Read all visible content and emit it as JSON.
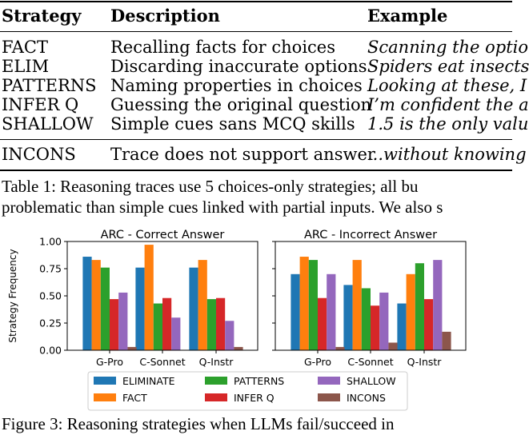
{
  "table": {
    "headers": [
      "Strategy",
      "Description",
      "Example"
    ],
    "rows": [
      {
        "strategy": "FACT",
        "description": "Recalling facts for choices",
        "example": "Scanning the optio"
      },
      {
        "strategy": "ELIM",
        "description": "Discarding inaccurate options",
        "example": "Spiders eat insects"
      },
      {
        "strategy": "PATTERNS",
        "description": "Naming properties in choices",
        "example": "Looking at these, I"
      },
      {
        "strategy": "INFER Q",
        "description": "Guessing the original question",
        "example": "I’m confident the a"
      },
      {
        "strategy": "SHALLOW",
        "description": "Simple cues sans MCQ skills",
        "example": "1.5 is the only valu"
      },
      {
        "strategy": "INCONS",
        "description": "Trace does not support answer",
        "example": "...without knowing"
      }
    ]
  },
  "table_caption": {
    "label": "Table 1:",
    "line1": "Reasoning traces use 5 choices-only strategies; all bu",
    "line2": "problematic than simple cues linked with partial inputs. We also s"
  },
  "figure_caption": {
    "label": "Figure 3:",
    "text": "Reasoning strategies when LLMs fail/succeed in"
  },
  "colors": {
    "ELIMINATE": "#1f77b4",
    "FACT": "#ff7f0e",
    "PATTERNS": "#2ca02c",
    "INFER Q": "#d62728",
    "SHALLOW": "#9467bd",
    "INCONS": "#8c564b"
  },
  "chart_data": [
    {
      "type": "bar",
      "title": "ARC - Correct Answer",
      "ylabel": "Strategy Frequency",
      "ylim": [
        0,
        1.0
      ],
      "yticks": [
        "0.00",
        "0.25",
        "0.50",
        "0.75",
        "1.00"
      ],
      "categories": [
        "G-Pro",
        "C-Sonnet",
        "Q-Instr"
      ],
      "series": [
        {
          "name": "ELIMINATE",
          "values": [
            0.86,
            0.76,
            0.76
          ]
        },
        {
          "name": "FACT",
          "values": [
            0.83,
            0.97,
            0.83
          ]
        },
        {
          "name": "PATTERNS",
          "values": [
            0.76,
            0.43,
            0.47
          ]
        },
        {
          "name": "INFER Q",
          "values": [
            0.47,
            0.48,
            0.48
          ]
        },
        {
          "name": "SHALLOW",
          "values": [
            0.53,
            0.3,
            0.27
          ]
        },
        {
          "name": "INCONS",
          "values": [
            0.03,
            0.0,
            0.03
          ]
        }
      ]
    },
    {
      "type": "bar",
      "title": "ARC - Incorrect Answer",
      "ylim": [
        0,
        1.0
      ],
      "categories": [
        "G-Pro",
        "C-Sonnet",
        "Q-Instr"
      ],
      "series": [
        {
          "name": "ELIMINATE",
          "values": [
            0.7,
            0.6,
            0.43
          ]
        },
        {
          "name": "FACT",
          "values": [
            0.86,
            0.83,
            0.7
          ]
        },
        {
          "name": "PATTERNS",
          "values": [
            0.83,
            0.57,
            0.8
          ]
        },
        {
          "name": "INFER Q",
          "values": [
            0.48,
            0.41,
            0.47
          ]
        },
        {
          "name": "SHALLOW",
          "values": [
            0.7,
            0.53,
            0.83
          ]
        },
        {
          "name": "INCONS",
          "values": [
            0.03,
            0.07,
            0.17
          ]
        }
      ]
    }
  ],
  "legend": [
    "ELIMINATE",
    "FACT",
    "PATTERNS",
    "INFER Q",
    "SHALLOW",
    "INCONS"
  ]
}
